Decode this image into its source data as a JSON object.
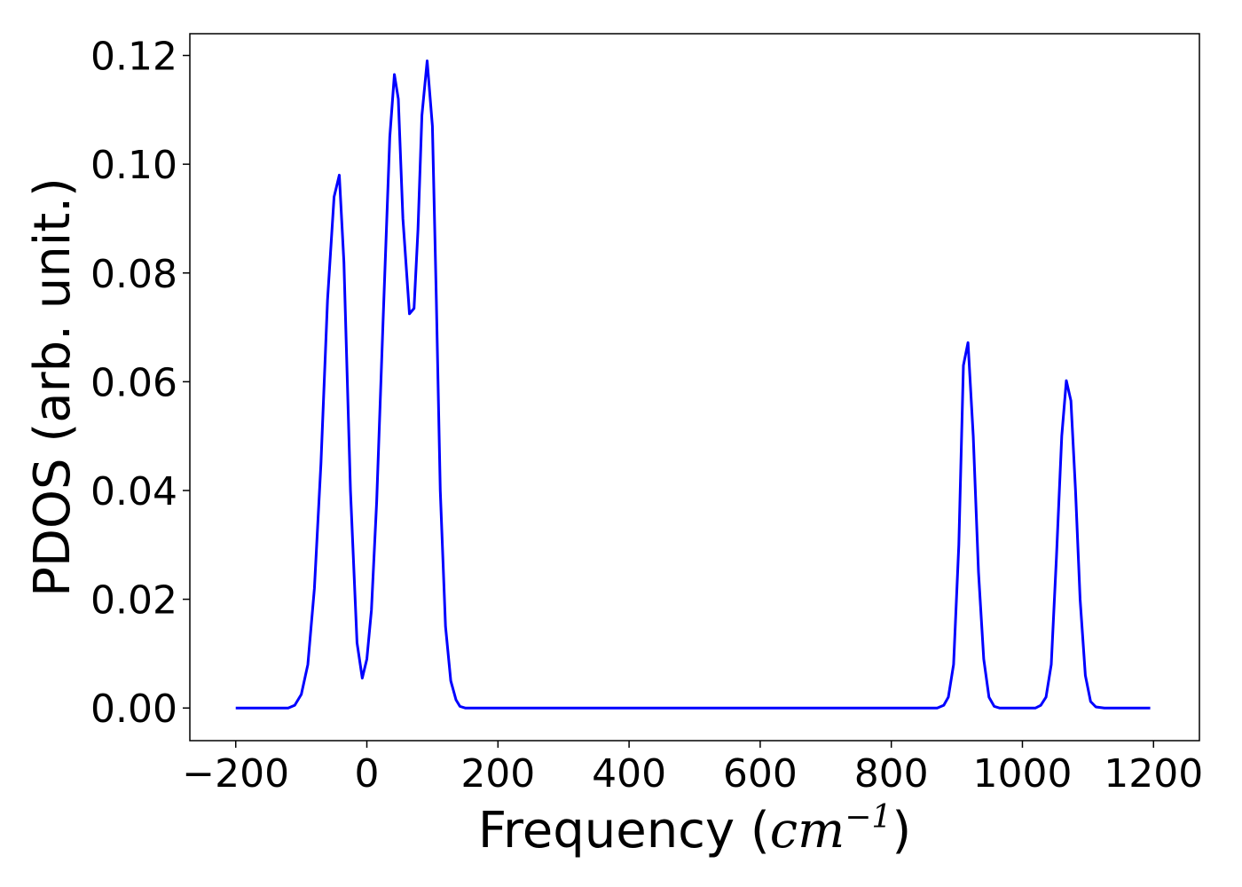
{
  "chart_data": {
    "type": "line",
    "title": "",
    "xlabel_prefix": "Frequency (",
    "xlabel_unit": "cm",
    "xlabel_exponent": "−1",
    "xlabel_suffix": ")",
    "ylabel": "PDOS (arb. unit.)",
    "xlim": [
      -270,
      1270
    ],
    "ylim": [
      -0.006,
      0.124
    ],
    "x_ticks": [
      -200,
      0,
      200,
      400,
      600,
      800,
      1000,
      1200
    ],
    "x_tick_labels": [
      "−200",
      "0",
      "200",
      "400",
      "600",
      "800",
      "1000",
      "1200"
    ],
    "y_ticks": [
      0.0,
      0.02,
      0.04,
      0.06,
      0.08,
      0.1,
      0.12
    ],
    "y_tick_labels": [
      "0.00",
      "0.02",
      "0.04",
      "0.06",
      "0.08",
      "0.10",
      "0.12"
    ],
    "grid": false,
    "series": [
      {
        "color": "#0000ff",
        "x": [
          -200,
          -120,
          -110,
          -100,
          -90,
          -80,
          -70,
          -60,
          -50,
          -42,
          -35,
          -25,
          -15,
          -7,
          0,
          7,
          15,
          25,
          35,
          42,
          48,
          55,
          65,
          72,
          78,
          84,
          92,
          100,
          106,
          112,
          120,
          128,
          136,
          142,
          150,
          160,
          870,
          880,
          887,
          895,
          903,
          910,
          917,
          925,
          933,
          941,
          949,
          957,
          965,
          1020,
          1028,
          1036,
          1044,
          1052,
          1060,
          1067,
          1074,
          1081,
          1088,
          1096,
          1104,
          1112,
          1125,
          1195
        ],
        "y": [
          0,
          0,
          0.0005,
          0.0025,
          0.008,
          0.022,
          0.045,
          0.075,
          0.094,
          0.098,
          0.082,
          0.04,
          0.012,
          0.0055,
          0.009,
          0.018,
          0.038,
          0.072,
          0.105,
          0.1165,
          0.112,
          0.09,
          0.0725,
          0.0735,
          0.088,
          0.109,
          0.119,
          0.107,
          0.075,
          0.04,
          0.015,
          0.005,
          0.0015,
          0.0003,
          0,
          0,
          0,
          0.0005,
          0.002,
          0.008,
          0.03,
          0.063,
          0.0672,
          0.05,
          0.025,
          0.009,
          0.002,
          0.0003,
          0,
          0,
          0.0005,
          0.002,
          0.008,
          0.028,
          0.05,
          0.0602,
          0.0565,
          0.04,
          0.02,
          0.006,
          0.0012,
          0.0002,
          0,
          0
        ]
      }
    ]
  }
}
